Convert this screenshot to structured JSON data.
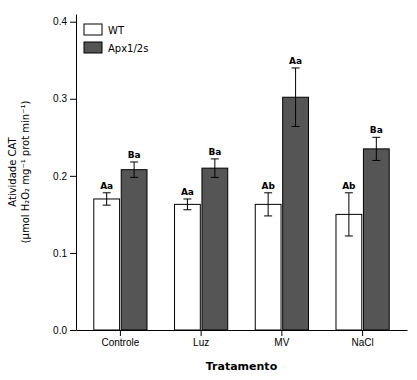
{
  "chart_data": {
    "type": "bar",
    "categories": [
      "Controle",
      "Luz",
      "MV",
      "NaCl"
    ],
    "series": [
      {
        "name": "WT",
        "color": "#ffffff",
        "values": [
          0.17,
          0.163,
          0.163,
          0.15
        ],
        "errors": [
          0.008,
          0.007,
          0.015,
          0.028
        ],
        "labels": [
          "Aa",
          "Aa",
          "Ab",
          "Ab"
        ]
      },
      {
        "name": "Apx1/2s",
        "color": "#555555",
        "values": [
          0.208,
          0.21,
          0.302,
          0.235
        ],
        "errors": [
          0.01,
          0.012,
          0.038,
          0.015
        ],
        "labels": [
          "Ba",
          "Ba",
          "Aa",
          "Ba"
        ]
      }
    ],
    "xlabel": "Tratamento",
    "ylabel": "Atividade CAT\n(μmol H₂O₂ mg⁻¹ prot min⁻¹)",
    "ylim": [
      0.0,
      0.41
    ],
    "yticks": [
      {
        "value": 0.0,
        "label": "0.0"
      },
      0.1,
      0.2,
      0.3,
      0.4
    ],
    "legend": "upper left",
    "grid": false
  }
}
